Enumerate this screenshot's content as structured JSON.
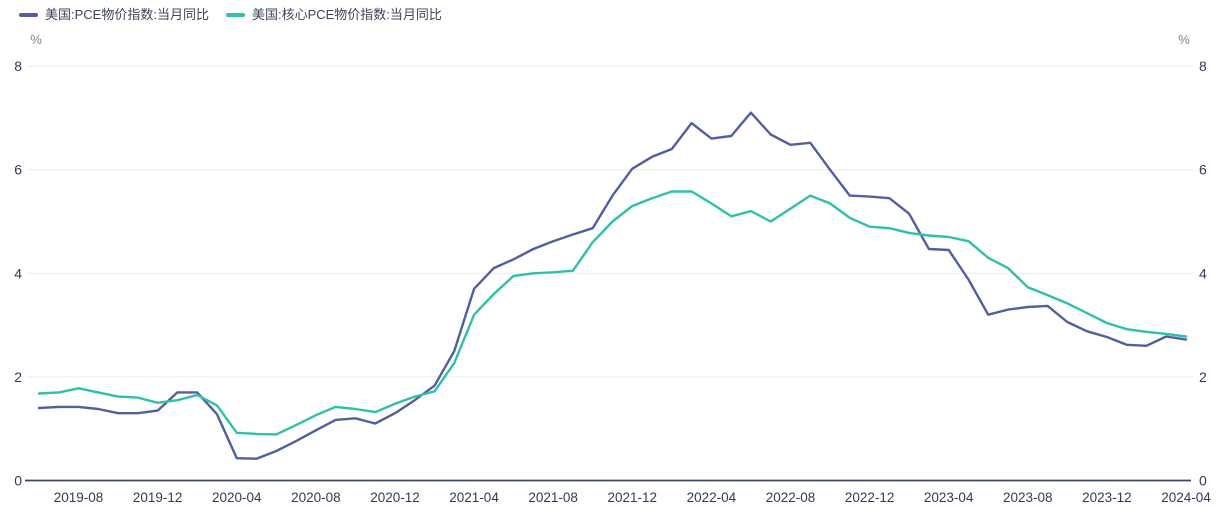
{
  "legend": {
    "items": [
      {
        "label": "美国:PCE物价指数:当月同比",
        "color": "#535E9E"
      },
      {
        "label": "美国:核心PCE物价指数:当月同比",
        "color": "#2FC0A7"
      }
    ]
  },
  "axes": {
    "y_unit_left": "%",
    "y_unit_right": "%"
  },
  "colors": {
    "background": "#FFFFFF",
    "grid_line": "#E8EAF3",
    "axis_line": "#3D4569",
    "tick_text": "#333A58",
    "unit_text": "#7B8194"
  },
  "chart_data": {
    "type": "line",
    "title": "",
    "legend_position": "top-left",
    "grid": true,
    "ylim": [
      0,
      8
    ],
    "y_ticks": [
      0,
      2,
      4,
      6,
      8
    ],
    "x_tick_labels": [
      "2019-08",
      "2019-12",
      "2020-04",
      "2020-08",
      "2020-12",
      "2021-04",
      "2021-08",
      "2021-12",
      "2022-04",
      "2022-08",
      "2022-12",
      "2023-04",
      "2023-08",
      "2023-12",
      "2024-04"
    ],
    "categories": [
      "2019-06",
      "2019-07",
      "2019-08",
      "2019-09",
      "2019-10",
      "2019-11",
      "2019-12",
      "2020-01",
      "2020-02",
      "2020-03",
      "2020-04",
      "2020-05",
      "2020-06",
      "2020-07",
      "2020-08",
      "2020-09",
      "2020-10",
      "2020-11",
      "2020-12",
      "2021-01",
      "2021-02",
      "2021-03",
      "2021-04",
      "2021-05",
      "2021-06",
      "2021-07",
      "2021-08",
      "2021-09",
      "2021-10",
      "2021-11",
      "2021-12",
      "2022-01",
      "2022-02",
      "2022-03",
      "2022-04",
      "2022-05",
      "2022-06",
      "2022-07",
      "2022-08",
      "2022-09",
      "2022-10",
      "2022-11",
      "2022-12",
      "2023-01",
      "2023-02",
      "2023-03",
      "2023-04",
      "2023-05",
      "2023-06",
      "2023-07",
      "2023-08",
      "2023-09",
      "2023-10",
      "2023-11",
      "2023-12",
      "2024-01",
      "2024-02",
      "2024-03",
      "2024-04"
    ],
    "series": [
      {
        "name": "美国:PCE物价指数:当月同比",
        "color": "#535E9E",
        "values": [
          1.4,
          1.42,
          1.42,
          1.38,
          1.3,
          1.3,
          1.35,
          1.7,
          1.7,
          1.28,
          0.43,
          0.42,
          0.57,
          0.76,
          0.97,
          1.17,
          1.2,
          1.1,
          1.3,
          1.55,
          1.83,
          2.5,
          3.7,
          4.1,
          4.27,
          4.47,
          4.62,
          4.75,
          4.87,
          5.5,
          6.02,
          6.25,
          6.4,
          6.9,
          6.6,
          6.65,
          7.1,
          6.68,
          6.48,
          6.52,
          6.0,
          5.5,
          5.48,
          5.45,
          5.15,
          4.47,
          4.45,
          3.88,
          3.2,
          3.3,
          3.35,
          3.37,
          3.06,
          2.88,
          2.77,
          2.62,
          2.6,
          2.78,
          2.72
        ]
      },
      {
        "name": "美国:核心PCE物价指数:当月同比",
        "color": "#2FC0A7",
        "values": [
          1.68,
          1.7,
          1.78,
          1.7,
          1.62,
          1.6,
          1.5,
          1.55,
          1.65,
          1.45,
          0.92,
          0.9,
          0.89,
          1.07,
          1.26,
          1.42,
          1.38,
          1.32,
          1.48,
          1.62,
          1.72,
          2.27,
          3.2,
          3.6,
          3.95,
          4.0,
          4.02,
          4.05,
          4.6,
          5.0,
          5.3,
          5.45,
          5.58,
          5.58,
          5.35,
          5.1,
          5.2,
          5.0,
          5.25,
          5.5,
          5.35,
          5.07,
          4.9,
          4.87,
          4.78,
          4.73,
          4.7,
          4.62,
          4.3,
          4.1,
          3.73,
          3.58,
          3.42,
          3.23,
          3.04,
          2.92,
          2.87,
          2.83,
          2.78
        ]
      }
    ]
  }
}
